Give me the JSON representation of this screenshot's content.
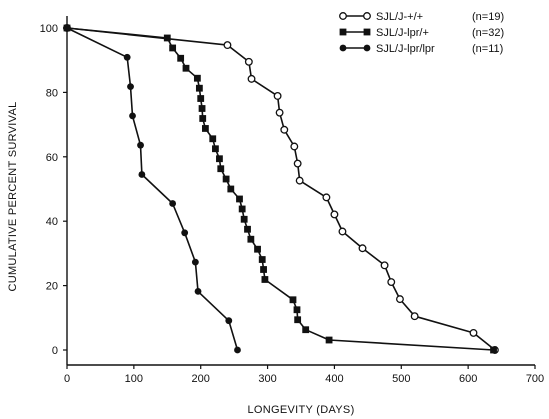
{
  "chart_data": {
    "type": "line",
    "title": "",
    "xlabel": "LONGEVITY (DAYS)",
    "ylabel": "CUMULATIVE  PERCENT  SURVIVAL",
    "xlim": [
      0,
      700
    ],
    "ylim": [
      0,
      100
    ],
    "x_ticks": [
      "0",
      "100",
      "200",
      "300",
      "400",
      "500",
      "600",
      "700"
    ],
    "y_ticks": [
      "0",
      "20",
      "40",
      "60",
      "80",
      "100"
    ],
    "grid": false,
    "legend_position": "top-right",
    "series": [
      {
        "name": "SJL/J-+/+",
        "n_label": "(n=19)",
        "marker": "open-circle",
        "color": "#111111",
        "points": [
          [
            0,
            100
          ],
          [
            240,
            94.7
          ],
          [
            272,
            89.5
          ],
          [
            276,
            84.2
          ],
          [
            315,
            78.9
          ],
          [
            318,
            73.7
          ],
          [
            325,
            68.4
          ],
          [
            340,
            63.2
          ],
          [
            345,
            57.9
          ],
          [
            348,
            52.6
          ],
          [
            388,
            47.4
          ],
          [
            400,
            42.1
          ],
          [
            412,
            36.8
          ],
          [
            442,
            31.6
          ],
          [
            475,
            26.3
          ],
          [
            485,
            21.1
          ],
          [
            498,
            15.8
          ],
          [
            520,
            10.5
          ],
          [
            608,
            5.3
          ],
          [
            640,
            0
          ]
        ]
      },
      {
        "name": "SJL/J-lpr/+",
        "n_label": "(n=32)",
        "marker": "filled-square",
        "color": "#111111",
        "points": [
          [
            0,
            100
          ],
          [
            150,
            96.9
          ],
          [
            158,
            93.8
          ],
          [
            170,
            90.6
          ],
          [
            178,
            87.5
          ],
          [
            195,
            84.4
          ],
          [
            198,
            81.3
          ],
          [
            200,
            78.1
          ],
          [
            202,
            75.0
          ],
          [
            203,
            71.9
          ],
          [
            207,
            68.8
          ],
          [
            218,
            65.6
          ],
          [
            222,
            62.5
          ],
          [
            228,
            59.4
          ],
          [
            230,
            56.3
          ],
          [
            238,
            53.1
          ],
          [
            245,
            50.0
          ],
          [
            258,
            46.9
          ],
          [
            262,
            43.8
          ],
          [
            265,
            40.6
          ],
          [
            270,
            37.5
          ],
          [
            275,
            34.4
          ],
          [
            285,
            31.3
          ],
          [
            292,
            28.1
          ],
          [
            294,
            25.0
          ],
          [
            296,
            21.9
          ],
          [
            338,
            15.6
          ],
          [
            344,
            12.5
          ],
          [
            345,
            9.4
          ],
          [
            357,
            6.3
          ],
          [
            392,
            3.1
          ],
          [
            638,
            0
          ]
        ]
      },
      {
        "name": "SJL/J-lpr/lpr",
        "n_label": "(n=11)",
        "marker": "filled-circle",
        "color": "#111111",
        "points": [
          [
            0,
            100
          ],
          [
            90,
            90.9
          ],
          [
            95,
            81.8
          ],
          [
            98,
            72.7
          ],
          [
            110,
            63.6
          ],
          [
            112,
            54.5
          ],
          [
            158,
            45.5
          ],
          [
            176,
            36.4
          ],
          [
            192,
            27.3
          ],
          [
            196,
            18.2
          ],
          [
            242,
            9.1
          ],
          [
            255,
            0
          ]
        ]
      }
    ]
  }
}
